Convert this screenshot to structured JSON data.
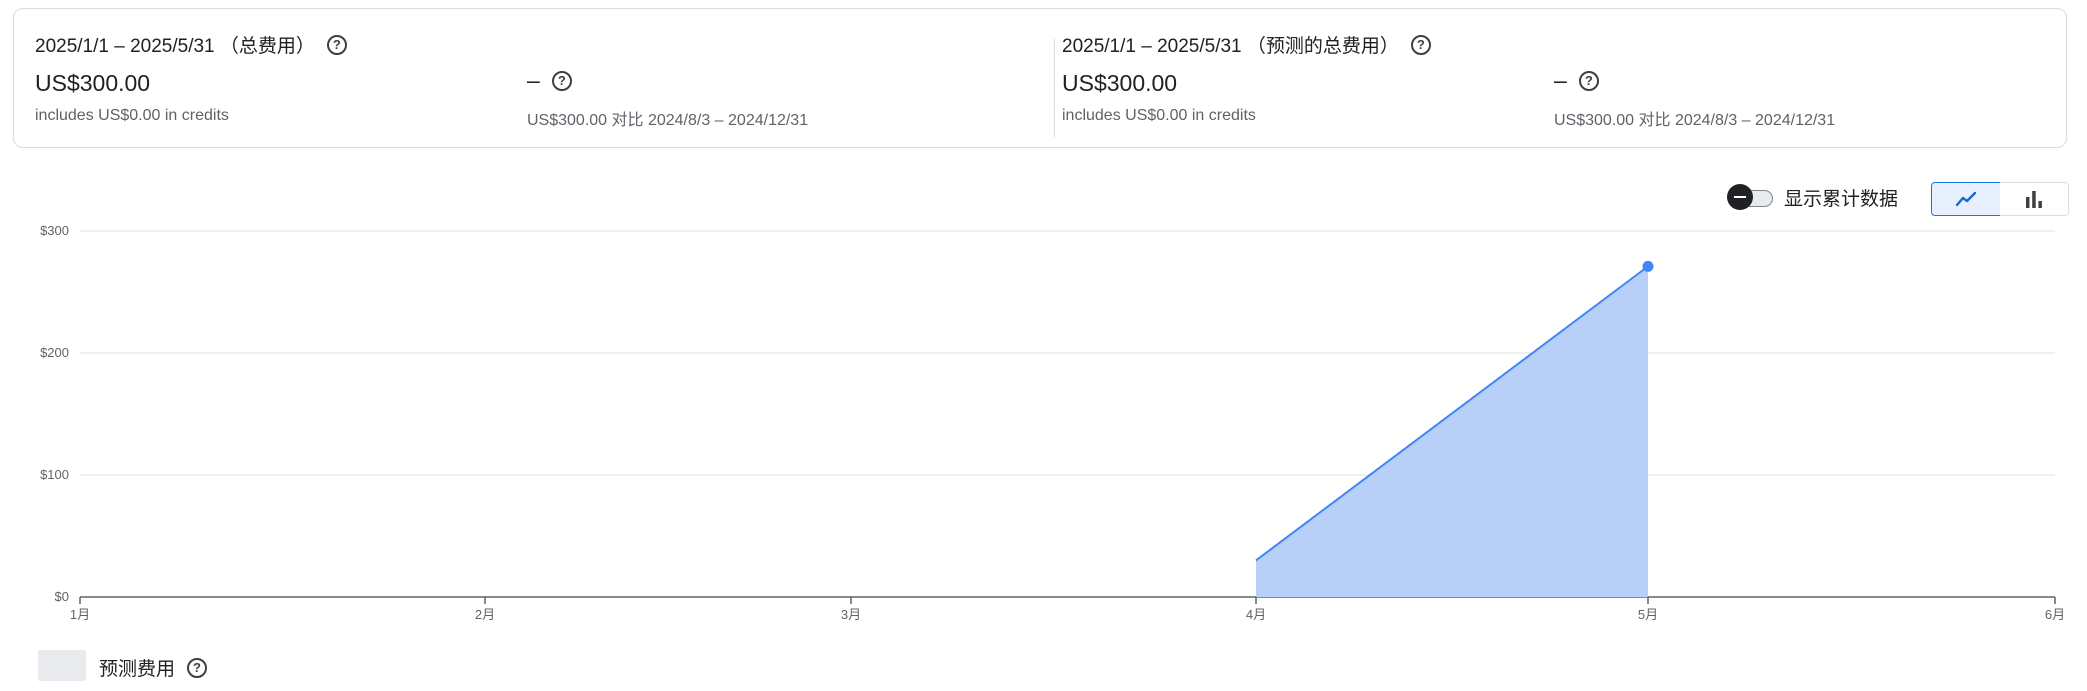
{
  "summary": {
    "left": {
      "period": "2025/1/1 – 2025/5/31 （总费用）",
      "amount": "US$300.00",
      "credits": "includes US$0.00 in credits",
      "change": "–",
      "comparison": "US$300.00 对比 2024/8/3 – 2024/12/31"
    },
    "right": {
      "period": "2025/1/1 – 2025/5/31 （预测的总费用）",
      "amount": "US$300.00",
      "credits": "includes US$0.00 in credits",
      "change": "–",
      "comparison": "US$300.00 对比 2024/8/3 – 2024/12/31"
    }
  },
  "controls": {
    "cumulative_label": "显示累计数据",
    "cumulative_on": false,
    "view": "line"
  },
  "icons": {
    "help": "help-circle-icon",
    "line_view": "line-chart-icon",
    "bar_view": "bar-chart-icon"
  },
  "legend": {
    "label": "预测费用"
  },
  "chart_data": {
    "type": "area",
    "x_categories": [
      "1月",
      "2月",
      "3月",
      "4月",
      "5月",
      "6月"
    ],
    "y_ticks": [
      "$0",
      "$100",
      "$200",
      "$300"
    ],
    "ylim": [
      0,
      300
    ],
    "grid": true,
    "legend_position": "bottom-left",
    "series": [
      {
        "color": "#4285f4",
        "fill": "#b8d0f8",
        "points": [
          {
            "x": "4月",
            "y": 30
          },
          {
            "x": "5月",
            "y": 271
          }
        ]
      }
    ]
  }
}
